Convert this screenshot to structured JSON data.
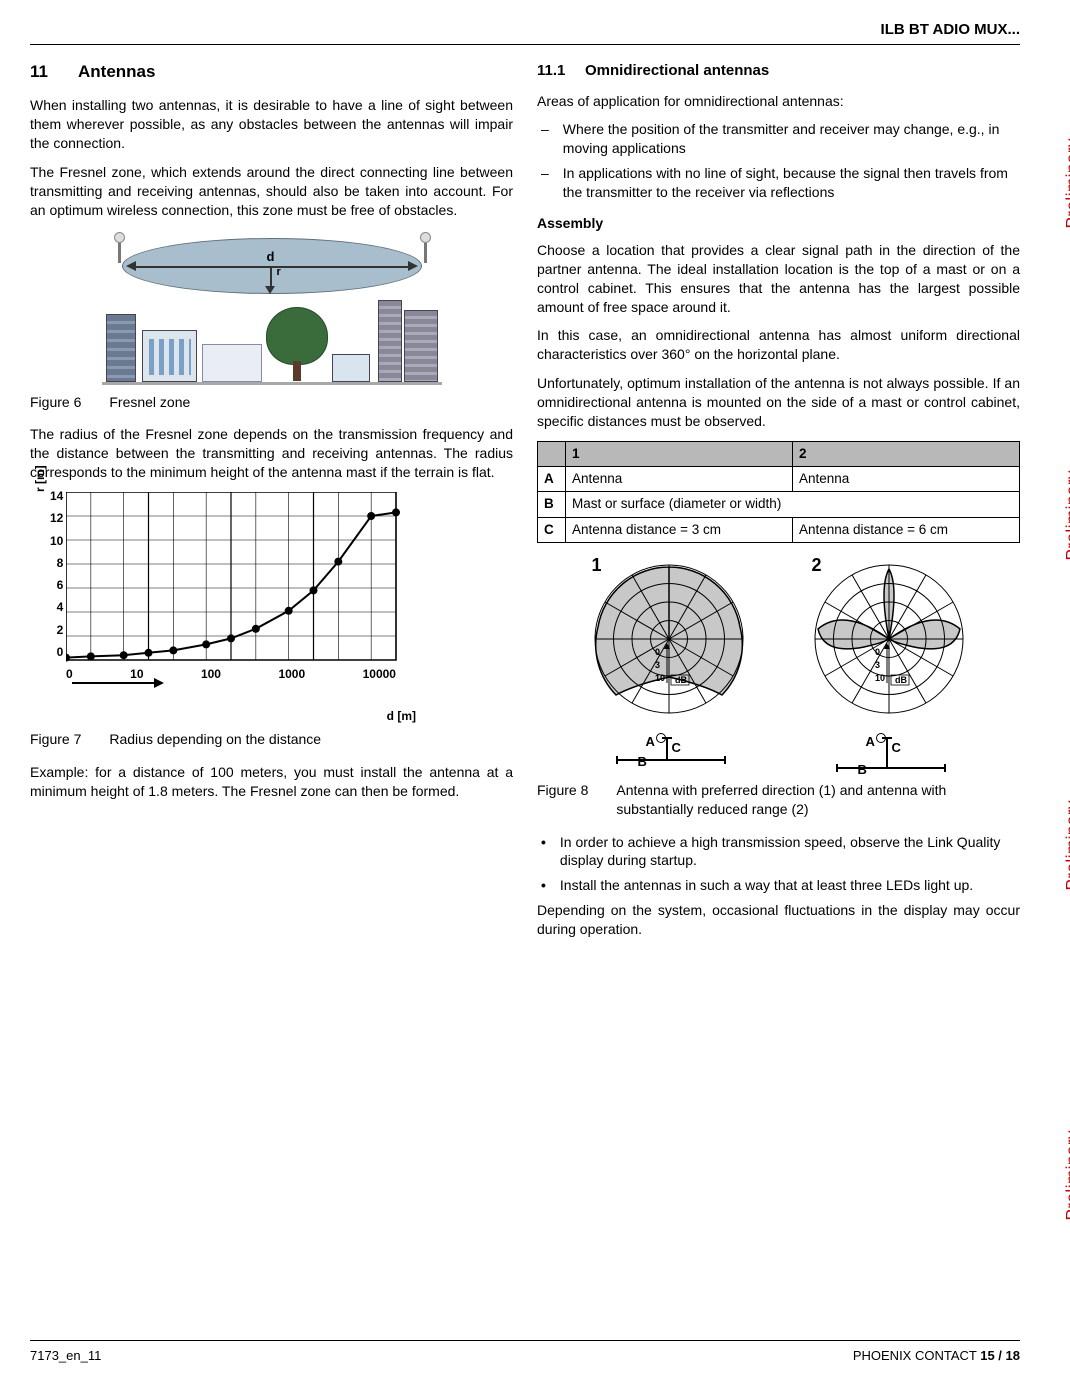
{
  "header": {
    "doc_title": "ILB BT ADIO MUX..."
  },
  "watermark": "Preliminary",
  "col_left": {
    "h2_num": "11",
    "h2_title": "Antennas",
    "p1": "When installing two antennas, it is desirable to have a line of sight between them wherever possible, as any obstacles between the antennas will impair the connection.",
    "p2": "The Fresnel zone, which extends around the direct connecting line between transmitting and receiving antennas, should also be taken into account. For an optimum wireless connection, this zone must be free of obstacles.",
    "fig6": {
      "label": "Figure 6",
      "caption": "Fresnel zone",
      "d": "d",
      "r": "r"
    },
    "p3": "The radius of the Fresnel zone depends on the transmission frequency and the distance between the transmitting and receiving antennas. The radius corresponds to the minimum height of the antenna mast if the terrain is flat.",
    "chart": {
      "type": "line",
      "x_scale": "log",
      "xlabel": "d [m]",
      "ylabel": "r [m]",
      "xticks": [
        "0",
        "10",
        "100",
        "1000",
        "10000"
      ],
      "yticks": [
        "14",
        "12",
        "10",
        "8",
        "6",
        "4",
        "2",
        "0"
      ],
      "ylim": [
        0,
        14
      ],
      "points_x": [
        1,
        2,
        5,
        10,
        20,
        50,
        100,
        200,
        500,
        1000,
        2000,
        5000,
        10000
      ],
      "points_y": [
        0.2,
        0.3,
        0.4,
        0.6,
        0.8,
        1.3,
        1.8,
        2.6,
        4.1,
        5.8,
        8.2,
        12.0,
        12.3
      ],
      "line_color": "#000000",
      "marker_style": "circle",
      "marker_size": 4,
      "grid_color": "#000000",
      "background_color": "#ffffff",
      "border": true
    },
    "fig7": {
      "label": "Figure 7",
      "caption": "Radius depending on the distance"
    },
    "p4": "Example: for a distance of 100 meters, you must install the antenna at a minimum height of 1.8 meters. The Fresnel zone can then be formed."
  },
  "col_right": {
    "h3_num": "11.1",
    "h3_title": "Omnidirectional antennas",
    "p1": "Areas of application for omnidirectional antennas:",
    "li1": "Where the position of the transmitter and receiver may change, e.g., in moving applications",
    "li2": "In applications with no line of sight, because the signal then travels from the transmitter to the receiver via reflections",
    "h4_assembly": "Assembly",
    "p2": "Choose a location that provides a clear signal path in the direction of the partner antenna. The ideal installation location is the top of a mast or on a control cabinet. This ensures that the antenna has the largest possible amount of free space around it.",
    "p3": "In this case, an omnidirectional antenna has almost uniform directional characteristics over 360° on the horizontal plane.",
    "p4": "Unfortunately, optimum installation of the antenna is not always possible. If an omnidirectional antenna is mounted on the side of a mast or control cabinet, specific distances must be observed.",
    "table": {
      "columns": [
        "",
        "1",
        "2"
      ],
      "rows": [
        [
          "A",
          "Antenna",
          "Antenna"
        ],
        [
          "B",
          "Mast or surface (diameter or width)",
          ""
        ],
        [
          "C",
          "Antenna distance = 3 cm",
          "Antenna distance = 6 cm"
        ]
      ],
      "header_bg": "#b8b8b8",
      "border_color": "#000000"
    },
    "polar": {
      "num1": "1",
      "num2": "2",
      "db_label": "dB",
      "ticks": [
        "10",
        "3",
        "0"
      ],
      "labelA": "A",
      "labelB": "B",
      "labelC": "C",
      "ring_color": "#000000",
      "fill_color": "#c8c8c8",
      "radial_count": 12,
      "ring_count": 4
    },
    "fig8": {
      "label": "Figure 8",
      "caption": "Antenna with preferred direction (1) and antenna with substantially reduced range (2)"
    },
    "bl1": "In order to achieve a high transmission speed, observe the Link Quality display during startup.",
    "bl2": "Install the antennas in such a way that at least three LEDs light up.",
    "p5": "Depending on the system, occasional fluctuations in the display may occur during operation."
  },
  "footer": {
    "doc_id": "7173_en_11",
    "company": "PHOENIX CONTACT",
    "page": "15 / 18"
  }
}
